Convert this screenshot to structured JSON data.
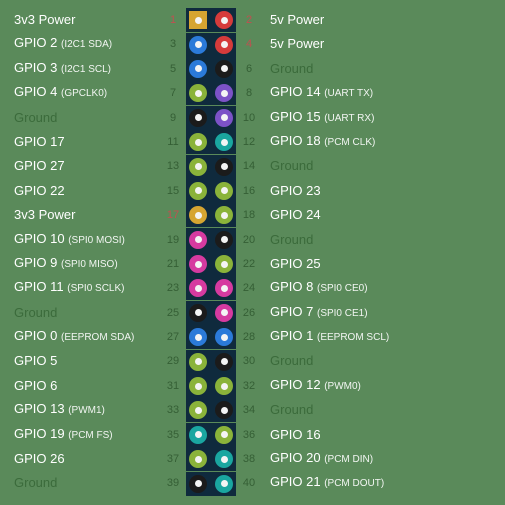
{
  "colors": {
    "board_bg": "#5a8a5a",
    "strip_bg": "#0f2a3d",
    "text_normal": "#ffffff",
    "text_ground": "#3b6b3b",
    "num_normal": "#355f35",
    "num_hot": "#c05050",
    "hole": "#f4f4f4",
    "pin_power": "#d6a531",
    "pin_5v": "#d63b3b",
    "pin_ground": "#1b1b1b",
    "pin_gpio": "#8ab33a",
    "pin_i2c": "#2b7ad9",
    "pin_uart": "#7c52c7",
    "pin_spi": "#d63aa0",
    "pin_pcm": "#1aa6a0"
  },
  "rows": [
    {
      "l": {
        "txt": "3v3 Power",
        "alt": "",
        "g": false,
        "c": "pin_power"
      },
      "r": {
        "txt": "5v Power",
        "alt": "",
        "g": false,
        "c": "pin_5v"
      },
      "sq": true
    },
    {
      "l": {
        "txt": "GPIO 2",
        "alt": "(I2C1 SDA)",
        "g": false,
        "c": "pin_i2c"
      },
      "r": {
        "txt": "5v Power",
        "alt": "",
        "g": false,
        "c": "pin_5v"
      }
    },
    {
      "l": {
        "txt": "GPIO 3",
        "alt": "(I2C1 SCL)",
        "g": false,
        "c": "pin_i2c"
      },
      "r": {
        "txt": "Ground",
        "alt": "",
        "g": true,
        "c": "pin_ground"
      }
    },
    {
      "l": {
        "txt": "GPIO 4",
        "alt": "(GPCLK0)",
        "g": false,
        "c": "pin_gpio"
      },
      "r": {
        "txt": "GPIO 14",
        "alt": "(UART TX)",
        "g": false,
        "c": "pin_uart"
      }
    },
    {
      "l": {
        "txt": "Ground",
        "alt": "",
        "g": true,
        "c": "pin_ground"
      },
      "r": {
        "txt": "GPIO 15",
        "alt": "(UART RX)",
        "g": false,
        "c": "pin_uart"
      }
    },
    {
      "l": {
        "txt": "GPIO 17",
        "alt": "",
        "g": false,
        "c": "pin_gpio"
      },
      "r": {
        "txt": "GPIO 18",
        "alt": "(PCM CLK)",
        "g": false,
        "c": "pin_pcm"
      }
    },
    {
      "l": {
        "txt": "GPIO 27",
        "alt": "",
        "g": false,
        "c": "pin_gpio"
      },
      "r": {
        "txt": "Ground",
        "alt": "",
        "g": true,
        "c": "pin_ground"
      }
    },
    {
      "l": {
        "txt": "GPIO 22",
        "alt": "",
        "g": false,
        "c": "pin_gpio"
      },
      "r": {
        "txt": "GPIO 23",
        "alt": "",
        "g": false,
        "c": "pin_gpio"
      }
    },
    {
      "l": {
        "txt": "3v3 Power",
        "alt": "",
        "g": false,
        "c": "pin_power"
      },
      "r": {
        "txt": "GPIO 24",
        "alt": "",
        "g": false,
        "c": "pin_gpio"
      }
    },
    {
      "l": {
        "txt": "GPIO 10",
        "alt": "(SPI0 MOSI)",
        "g": false,
        "c": "pin_spi"
      },
      "r": {
        "txt": "Ground",
        "alt": "",
        "g": true,
        "c": "pin_ground"
      }
    },
    {
      "l": {
        "txt": "GPIO 9",
        "alt": "(SPI0 MISO)",
        "g": false,
        "c": "pin_spi"
      },
      "r": {
        "txt": "GPIO 25",
        "alt": "",
        "g": false,
        "c": "pin_gpio"
      }
    },
    {
      "l": {
        "txt": "GPIO 11",
        "alt": "(SPI0 SCLK)",
        "g": false,
        "c": "pin_spi"
      },
      "r": {
        "txt": "GPIO 8",
        "alt": "(SPI0 CE0)",
        "g": false,
        "c": "pin_spi"
      }
    },
    {
      "l": {
        "txt": "Ground",
        "alt": "",
        "g": true,
        "c": "pin_ground"
      },
      "r": {
        "txt": "GPIO 7",
        "alt": "(SPI0 CE1)",
        "g": false,
        "c": "pin_spi"
      }
    },
    {
      "l": {
        "txt": "GPIO 0",
        "alt": "(EEPROM SDA)",
        "g": false,
        "c": "pin_i2c"
      },
      "r": {
        "txt": "GPIO 1",
        "alt": "(EEPROM SCL)",
        "g": false,
        "c": "pin_i2c"
      }
    },
    {
      "l": {
        "txt": "GPIO 5",
        "alt": "",
        "g": false,
        "c": "pin_gpio"
      },
      "r": {
        "txt": "Ground",
        "alt": "",
        "g": true,
        "c": "pin_ground"
      }
    },
    {
      "l": {
        "txt": "GPIO 6",
        "alt": "",
        "g": false,
        "c": "pin_gpio"
      },
      "r": {
        "txt": "GPIO 12",
        "alt": "(PWM0)",
        "g": false,
        "c": "pin_gpio"
      }
    },
    {
      "l": {
        "txt": "GPIO 13",
        "alt": "(PWM1)",
        "g": false,
        "c": "pin_gpio"
      },
      "r": {
        "txt": "Ground",
        "alt": "",
        "g": true,
        "c": "pin_ground"
      }
    },
    {
      "l": {
        "txt": "GPIO 19",
        "alt": "(PCM FS)",
        "g": false,
        "c": "pin_pcm"
      },
      "r": {
        "txt": "GPIO 16",
        "alt": "",
        "g": false,
        "c": "pin_gpio"
      }
    },
    {
      "l": {
        "txt": "GPIO 26",
        "alt": "",
        "g": false,
        "c": "pin_gpio"
      },
      "r": {
        "txt": "GPIO 20",
        "alt": "(PCM DIN)",
        "g": false,
        "c": "pin_pcm"
      }
    },
    {
      "l": {
        "txt": "Ground",
        "alt": "",
        "g": true,
        "c": "pin_ground"
      },
      "r": {
        "txt": "GPIO 21",
        "alt": "(PCM DOUT)",
        "g": false,
        "c": "pin_pcm"
      }
    }
  ]
}
